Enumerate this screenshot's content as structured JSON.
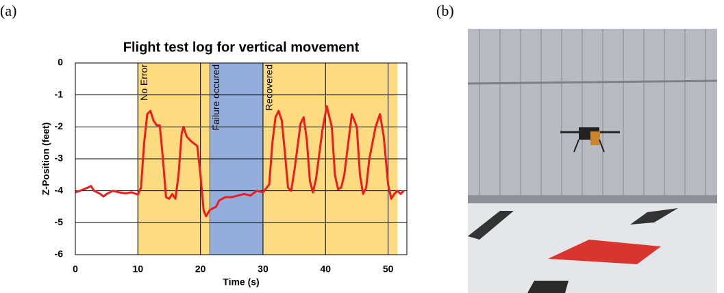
{
  "panels": {
    "a": "(a)",
    "b": "(b)"
  },
  "chart_data": {
    "type": "line",
    "title": "Flight test log for vertical movement",
    "x_label": "Time (s)",
    "y_label": "Z-Position (feet)",
    "xlim": [
      0,
      53
    ],
    "xticks": [
      0,
      10,
      20,
      30,
      40,
      50
    ],
    "ylim": [
      -6,
      0
    ],
    "yticks": [
      0,
      -1,
      -2,
      -3,
      -4,
      -5,
      -6
    ],
    "grid": true,
    "color": "#ee1c1c",
    "regions": [
      {
        "start": 10,
        "end": 21.5,
        "color": "#fddb80",
        "label": "No Error"
      },
      {
        "start": 21.5,
        "end": 30,
        "color": "#93aedc",
        "label": "Failure occured"
      },
      {
        "start": 30,
        "end": 51.5,
        "color": "#fddb80",
        "label": "Recovered"
      }
    ],
    "x": [
      0,
      1,
      2,
      2.5,
      3,
      4,
      4.5,
      5,
      6,
      7,
      8,
      9,
      10,
      10.5,
      11,
      11.5,
      12,
      12.5,
      13,
      13.5,
      14,
      14.5,
      15,
      15.5,
      16,
      16.5,
      17,
      17.3,
      17.8,
      18.5,
      19.5,
      20,
      20.5,
      20.9,
      21.5,
      22.5,
      23,
      24,
      25,
      26,
      27,
      28,
      29,
      30,
      31,
      31.5,
      32,
      32.5,
      33,
      33.5,
      34,
      34.5,
      35,
      36,
      36.5,
      37,
      37.5,
      38,
      38.5,
      39.5,
      40.2,
      41,
      41.5,
      42,
      42.5,
      43,
      44.2,
      45,
      45.5,
      46,
      46.5,
      47,
      48,
      48.7,
      49.3,
      50,
      50.5,
      51,
      51.5,
      52,
      52.5
    ],
    "values": [
      -4.05,
      -3.98,
      -3.9,
      -3.85,
      -4.0,
      -4.1,
      -4.18,
      -4.1,
      -4.0,
      -4.05,
      -4.08,
      -4.05,
      -4.12,
      -3.9,
      -2.5,
      -1.6,
      -1.5,
      -1.8,
      -1.95,
      -1.95,
      -3.0,
      -4.2,
      -4.25,
      -4.1,
      -4.25,
      -3.5,
      -2.2,
      -2.0,
      -2.3,
      -2.45,
      -2.6,
      -3.5,
      -4.6,
      -4.8,
      -4.6,
      -4.5,
      -4.3,
      -4.2,
      -4.2,
      -4.15,
      -4.1,
      -4.15,
      -4.0,
      -4.05,
      -3.8,
      -2.5,
      -1.7,
      -1.5,
      -1.8,
      -2.8,
      -3.9,
      -4.0,
      -3.4,
      -1.9,
      -1.7,
      -2.4,
      -3.7,
      -4.05,
      -3.6,
      -2.1,
      -1.35,
      -2.0,
      -3.5,
      -3.95,
      -3.9,
      -3.5,
      -1.6,
      -2.0,
      -3.5,
      -4.1,
      -3.9,
      -3.0,
      -2.0,
      -1.6,
      -2.3,
      -3.8,
      -4.25,
      -4.1,
      -4.0,
      -4.1,
      -4.0
    ]
  }
}
